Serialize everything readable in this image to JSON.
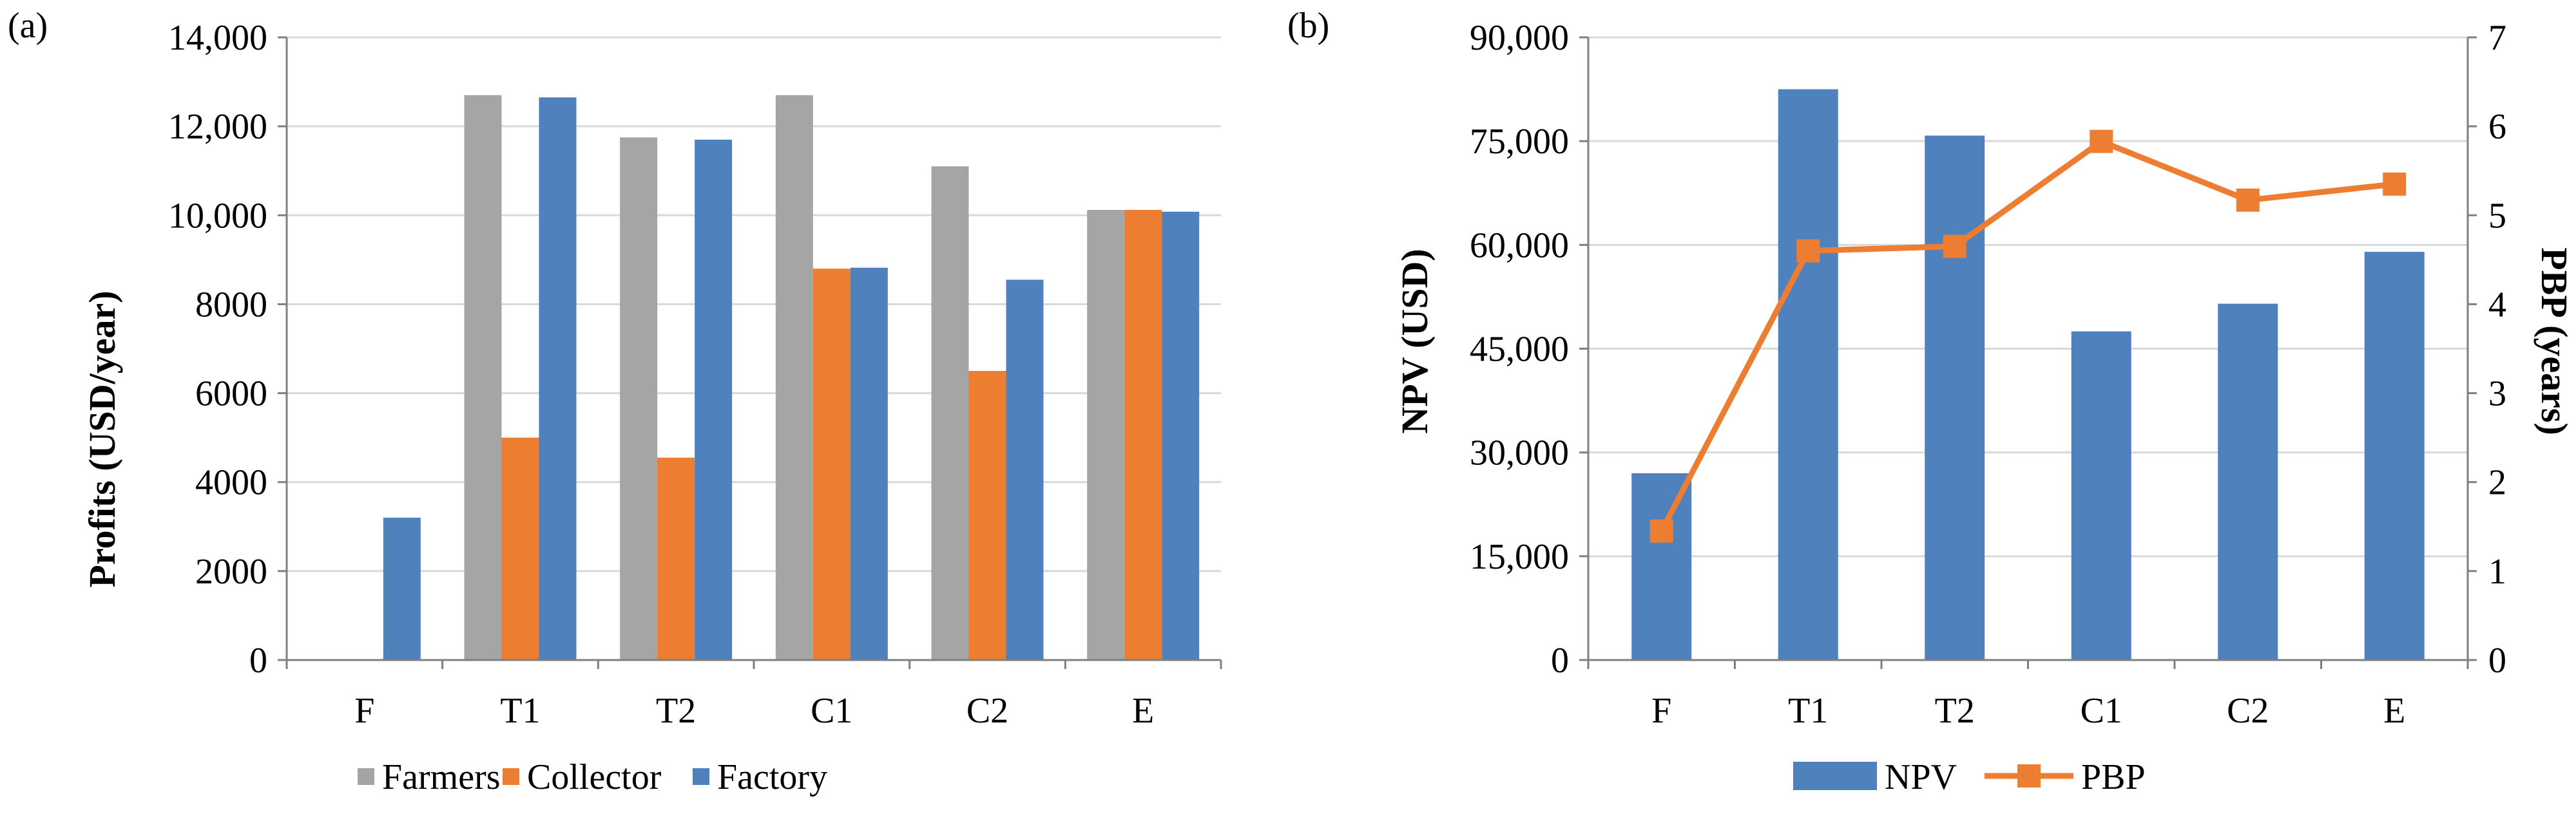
{
  "colors": {
    "farmers": "#a5a5a5",
    "collector": "#ed7d31",
    "factory": "#4f81bd",
    "npv": "#4f81bd",
    "pbp": "#ed7d31",
    "grid": "#d9d9d9",
    "axis": "#7f7f7f"
  },
  "chart_data": [
    {
      "panel_label": "(a)",
      "type": "bar",
      "ylabel": "Profits (USD/year)",
      "xlabel": "",
      "categories": [
        "F",
        "T1",
        "T2",
        "C1",
        "C2",
        "E"
      ],
      "ylim": [
        0,
        14000
      ],
      "yticks": [
        0,
        2000,
        4000,
        6000,
        8000,
        10000,
        12000,
        14000
      ],
      "ytick_labels": [
        "0",
        "2000",
        "4000",
        "6000",
        "8000",
        "10,000",
        "12,000",
        "14,000"
      ],
      "grid": true,
      "legend_position": "bottom",
      "series": [
        {
          "name": "Farmers",
          "values": [
            0,
            12700,
            11750,
            12700,
            11100,
            10120
          ]
        },
        {
          "name": "Collector",
          "values": [
            0,
            5000,
            4550,
            8800,
            6500,
            10120
          ]
        },
        {
          "name": "Factory",
          "values": [
            3200,
            12650,
            11700,
            8820,
            8550,
            10080
          ]
        }
      ]
    },
    {
      "panel_label": "(b)",
      "type": "bar+line",
      "ylabel": "NPV (USD)",
      "y2label": "PBP (years)",
      "xlabel": "",
      "categories": [
        "F",
        "T1",
        "T2",
        "C1",
        "C2",
        "E"
      ],
      "ylim": [
        0,
        90000
      ],
      "yticks": [
        0,
        15000,
        30000,
        45000,
        60000,
        75000,
        90000
      ],
      "ytick_labels": [
        "0",
        "15,000",
        "30,000",
        "45,000",
        "60,000",
        "75,000",
        "90,000"
      ],
      "y2lim": [
        0,
        7
      ],
      "y2ticks": [
        0,
        1,
        2,
        3,
        4,
        5,
        6,
        7
      ],
      "y2tick_labels": [
        "0",
        "1",
        "2",
        "3",
        "4",
        "5",
        "6",
        "7"
      ],
      "grid": true,
      "legend_position": "bottom",
      "series": [
        {
          "name": "NPV",
          "type": "bar",
          "axis": "left",
          "values": [
            27000,
            82500,
            75800,
            47500,
            51500,
            59000
          ]
        },
        {
          "name": "PBP",
          "type": "line",
          "axis": "right",
          "values": [
            1.45,
            4.6,
            4.65,
            5.83,
            5.17,
            5.35
          ]
        }
      ]
    }
  ]
}
